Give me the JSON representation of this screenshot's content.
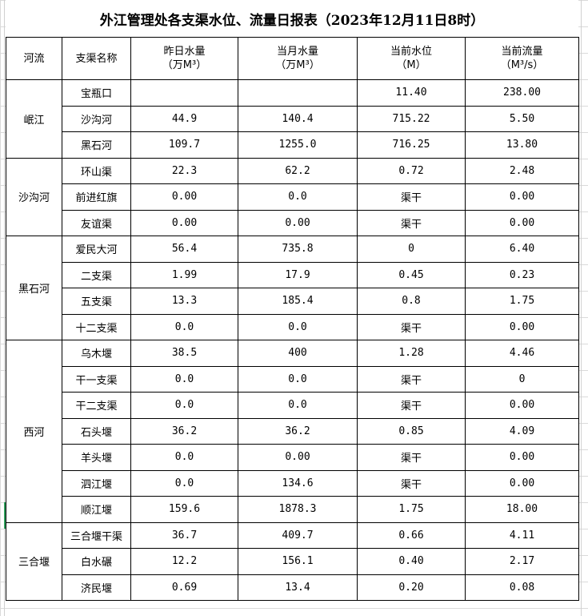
{
  "title": "外江管理处各支渠水位、流量日报表（2023年12月11日8时）",
  "headers": [
    {
      "line1": "河流",
      "line2": ""
    },
    {
      "line1": "支渠名称",
      "line2": ""
    },
    {
      "line1": "昨日水量",
      "line2": "（万M³）"
    },
    {
      "line1": "当月水量",
      "line2": "（万M³）"
    },
    {
      "line1": "当前水位",
      "line2": "（M）"
    },
    {
      "line1": "当前流量",
      "line2": "（M³/s）"
    }
  ],
  "groups": [
    {
      "river": "岷江",
      "rows": [
        [
          "宝瓶口",
          "",
          "",
          "11.40",
          "238.00"
        ],
        [
          "沙沟河",
          "44.9",
          "140.4",
          "715.22",
          "5.50"
        ],
        [
          "黑石河",
          "109.7",
          "1255.0",
          "716.25",
          "13.80"
        ]
      ]
    },
    {
      "river": "沙沟河",
      "rows": [
        [
          "环山渠",
          "22.3",
          "62.2",
          "0.72",
          "2.48"
        ],
        [
          "前进红旗",
          "0.00",
          "0.0",
          "渠干",
          "0.00"
        ],
        [
          "友谊渠",
          "0.00",
          "0.00",
          "渠干",
          "0.00"
        ]
      ]
    },
    {
      "river": "黑石河",
      "rows": [
        [
          "爱民大河",
          "56.4",
          "735.8",
          "0",
          "6.40"
        ],
        [
          "二支渠",
          "1.99",
          "17.9",
          "0.45",
          "0.23"
        ],
        [
          "五支渠",
          "13.3",
          "185.4",
          "0.8",
          "1.75"
        ],
        [
          "十二支渠",
          "0.0",
          "0.0",
          "渠干",
          "0.00"
        ]
      ]
    },
    {
      "river": "西河",
      "rows": [
        [
          "乌木堰",
          "38.5",
          "400",
          "1.28",
          "4.46"
        ],
        [
          "干一支渠",
          "0.0",
          "0.0",
          "渠干",
          "0"
        ],
        [
          "干二支渠",
          "0.0",
          "0.0",
          "渠干",
          "0.00"
        ],
        [
          "石头堰",
          "36.2",
          "36.2",
          "0.85",
          "4.09"
        ],
        [
          "羊头堰",
          "0.0",
          "0.00",
          "渠干",
          "0.00"
        ],
        [
          "泗江堰",
          "0.0",
          "134.6",
          "渠干",
          "0.00"
        ],
        [
          "顺江堰",
          "159.6",
          "1878.3",
          "1.75",
          "18.00"
        ]
      ]
    },
    {
      "river": "三合堰",
      "rows": [
        [
          "三合堰干渠",
          "36.7",
          "409.7",
          "0.66",
          "4.11"
        ],
        [
          "白水碾",
          "12.2",
          "156.1",
          "0.40",
          "2.17"
        ],
        [
          "济民堰",
          "0.69",
          "13.4",
          "0.20",
          "0.08"
        ]
      ]
    }
  ]
}
